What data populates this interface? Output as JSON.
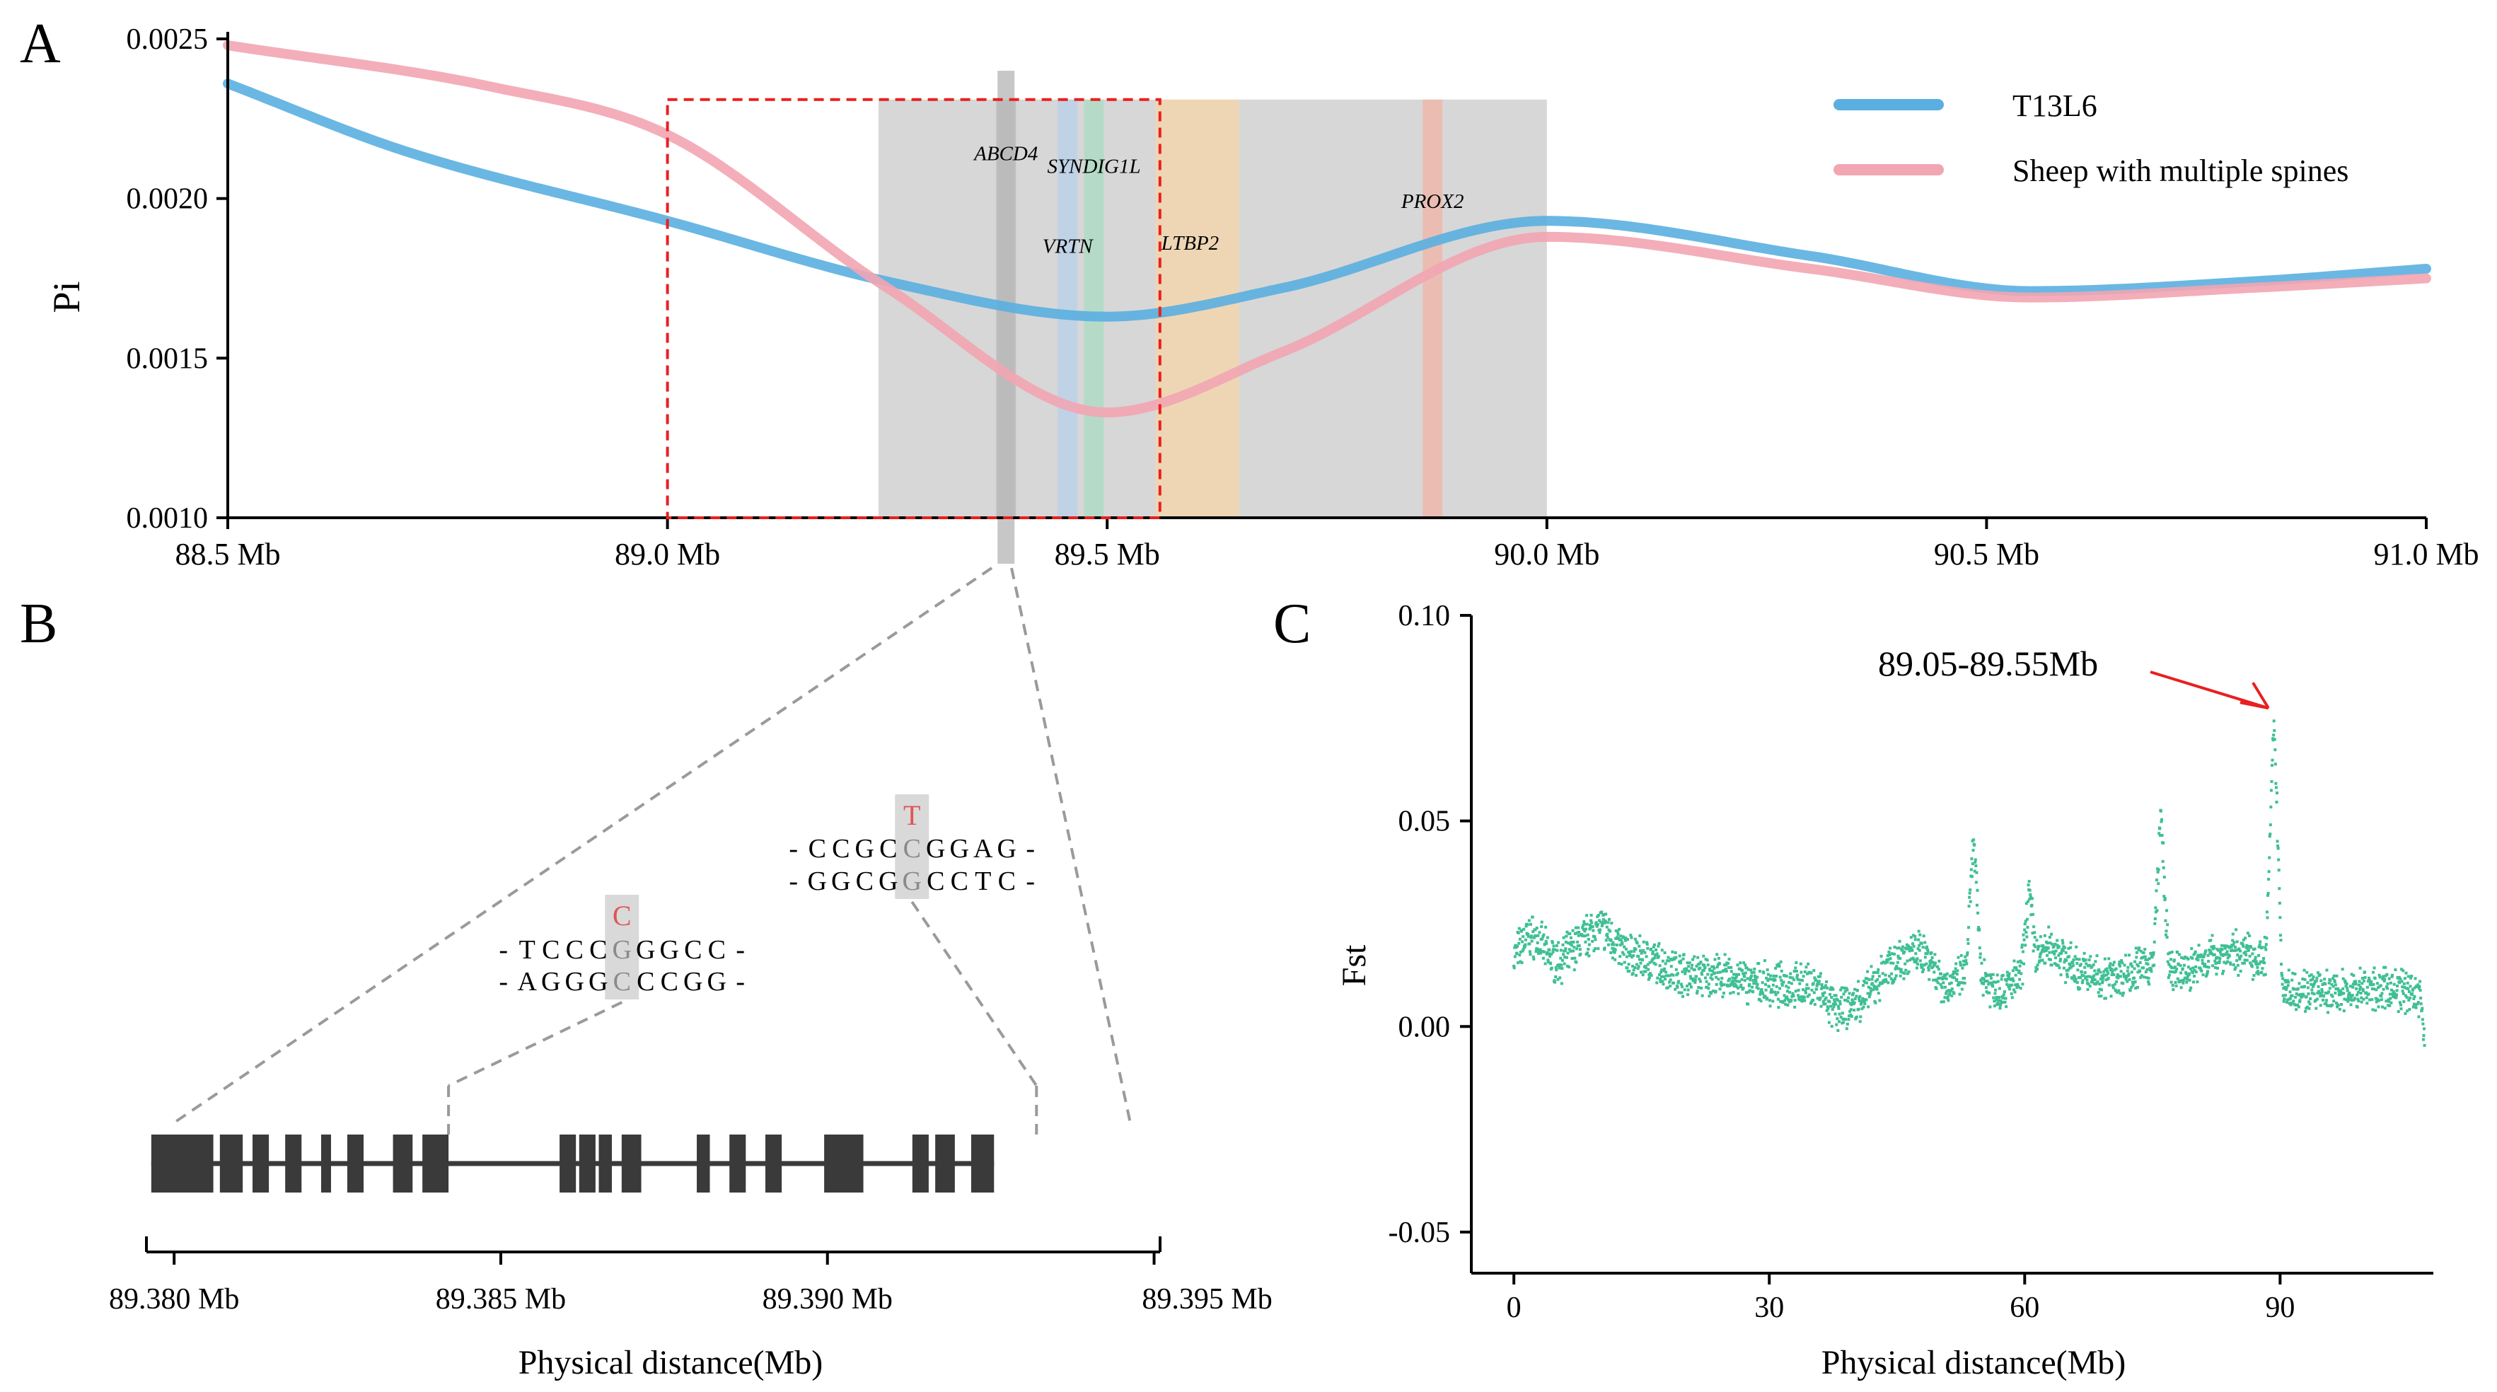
{
  "panels": {
    "a": {
      "letter": "A",
      "chart": {
        "type": "line",
        "ylabel": "Pi",
        "xlim": [
          88.5,
          91.0
        ],
        "ylim": [
          0.001,
          0.0025
        ],
        "x_ticks": [
          {
            "value": 88.5,
            "label": "88.5 Mb"
          },
          {
            "value": 89.0,
            "label": "89.0 Mb"
          },
          {
            "value": 89.5,
            "label": "89.5 Mb"
          },
          {
            "value": 90.0,
            "label": "90.0 Mb"
          },
          {
            "value": 90.5,
            "label": "90.5 Mb"
          },
          {
            "value": 91.0,
            "label": "91.0 Mb"
          }
        ],
        "y_ticks": [
          {
            "value": 0.001,
            "label": "0.0010"
          },
          {
            "value": 0.0015,
            "label": "0.0015"
          },
          {
            "value": 0.002,
            "label": "0.0020"
          },
          {
            "value": 0.0025,
            "label": "0.0025"
          }
        ],
        "legend_position": "top-right",
        "series": [
          {
            "name": "T13L6",
            "color": "#5aafe0",
            "x": [
              88.5,
              88.7,
              89.0,
              89.25,
              89.5,
              89.7,
              90.0,
              90.3,
              90.55,
              90.8,
              91.0
            ],
            "y": [
              0.00236,
              0.00215,
              0.00193,
              0.00174,
              0.00163,
              0.00172,
              0.00193,
              0.00182,
              0.00171,
              0.00174,
              0.00178
            ]
          },
          {
            "name": "Sheep with multiple spines",
            "color": "#f2a5b2",
            "x": [
              88.5,
              88.8,
              89.0,
              89.25,
              89.5,
              89.7,
              90.0,
              90.3,
              90.55,
              90.8,
              91.0
            ],
            "y": [
              0.00248,
              0.00235,
              0.0022,
              0.00172,
              0.00133,
              0.00152,
              0.00188,
              0.00178,
              0.00169,
              0.00172,
              0.00175
            ]
          }
        ],
        "highlight_region": {
          "start": 89.24,
          "end": 90.0,
          "y_top": 0.00231,
          "color": "#d7d7d7"
        },
        "selection_box": {
          "start": 89.0,
          "end": 89.56,
          "y_top": 0.00231,
          "color": "#e82020"
        },
        "zoom_marker": {
          "x": 89.385,
          "color": "#bdbdbd"
        },
        "genes": [
          {
            "name": "ABCD4",
            "x": 89.385,
            "color": "#b8b8b8",
            "label_y": 0.00212
          },
          {
            "name": "VRTN",
            "x": 89.455,
            "color": "#b8d0ea",
            "label_y": 0.00183
          },
          {
            "name": "SYNDIG1L",
            "x": 89.485,
            "color": "#aadcc3",
            "label_y": 0.00208
          },
          {
            "name": "LTBP2",
            "x": 89.6,
            "color": "#f6d6aa",
            "label_y": 0.00184
          },
          {
            "name": "PROX2",
            "x": 89.87,
            "color": "#f1b4a5",
            "label_y": 0.00197
          }
        ]
      }
    },
    "b": {
      "letter": "B",
      "xlabel": "Physical distance(Mb)",
      "xlim": [
        89.3795,
        89.3952
      ],
      "x_ticks": [
        {
          "value": 89.38,
          "label": "89.380 Mb"
        },
        {
          "value": 89.385,
          "label": "89.385 Mb"
        },
        {
          "value": 89.39,
          "label": "89.390 Mb"
        },
        {
          "value": 89.395,
          "label": "89.395 Mb"
        }
      ],
      "exons": [
        [
          89.37965,
          89.3806
        ],
        [
          89.3807,
          89.38105
        ],
        [
          89.3812,
          89.38145
        ],
        [
          89.3817,
          89.38195
        ],
        [
          89.38225,
          89.3824
        ],
        [
          89.38265,
          89.3829
        ],
        [
          89.38335,
          89.38365
        ],
        [
          89.3838,
          89.3842
        ],
        [
          89.3859,
          89.38615
        ],
        [
          89.3862,
          89.38645
        ],
        [
          89.3865,
          89.3867
        ],
        [
          89.38685,
          89.38715
        ],
        [
          89.388,
          89.3882
        ],
        [
          89.3885,
          89.38875
        ],
        [
          89.38905,
          89.3893
        ],
        [
          89.38995,
          89.39055
        ],
        [
          89.3913,
          89.39155
        ],
        [
          89.39165,
          89.39195
        ],
        [
          89.3922,
          89.39255
        ]
      ],
      "variants": [
        {
          "pos": 89.3842,
          "allele": "C",
          "top_strand": "-TCCCGGGCC-",
          "bottom_strand": "-AGGGCCCGG-",
          "highlight_index": 5
        },
        {
          "pos": 89.3932,
          "allele": "T",
          "top_strand": "-CCGCCGGAG-",
          "bottom_strand": "-GGCGGCCTC-",
          "highlight_index": 5
        }
      ],
      "allele_color": "#e05555",
      "highlight_color": "#d9d9d9"
    },
    "c": {
      "letter": "C",
      "chart": {
        "type": "scatter",
        "xlabel": "Physical distance(Mb)",
        "ylabel": "Fst",
        "xlim": [
          -5,
          108
        ],
        "ylim": [
          -0.06,
          0.1
        ],
        "x_ticks": [
          {
            "value": 0,
            "label": "0"
          },
          {
            "value": 30,
            "label": "30"
          },
          {
            "value": 60,
            "label": "60"
          },
          {
            "value": 90,
            "label": "90"
          }
        ],
        "y_ticks": [
          {
            "value": -0.05,
            "label": "-0.05"
          },
          {
            "value": 0.0,
            "label": "0.00"
          },
          {
            "value": 0.05,
            "label": "0.05"
          },
          {
            "value": 0.1,
            "label": "0.10"
          }
        ],
        "point_color": "#3fbf94",
        "profile": {
          "x": [
            0,
            2,
            5,
            8,
            10,
            13,
            16,
            20,
            25,
            30,
            35,
            38,
            41,
            45,
            48,
            51,
            54,
            57,
            60,
            63,
            66,
            70,
            75,
            78,
            82,
            86,
            88,
            89.3,
            90.5,
            92,
            96,
            100,
            104,
            106.5,
            107
          ],
          "y": [
            0.017,
            0.022,
            0.016,
            0.021,
            0.024,
            0.018,
            0.016,
            0.013,
            0.012,
            0.01,
            0.01,
            0.004,
            0.007,
            0.016,
            0.018,
            0.01,
            0.014,
            0.009,
            0.013,
            0.019,
            0.014,
            0.012,
            0.015,
            0.013,
            0.017,
            0.018,
            0.016,
            0.032,
            0.009,
            0.009,
            0.008,
            0.009,
            0.009,
            0.007,
            -0.008
          ]
        },
        "spikes": [
          {
            "x": 54.0,
            "y": 0.045
          },
          {
            "x": 60.5,
            "y": 0.033
          },
          {
            "x": 76.0,
            "y": 0.052
          },
          {
            "x": 89.3,
            "y": 0.073
          },
          {
            "x": 107.0,
            "y": -0.012
          }
        ],
        "annotation": {
          "text": "89.05-89.55Mb",
          "x": 89.3,
          "y": 0.074,
          "color": "#e82020"
        }
      }
    }
  }
}
